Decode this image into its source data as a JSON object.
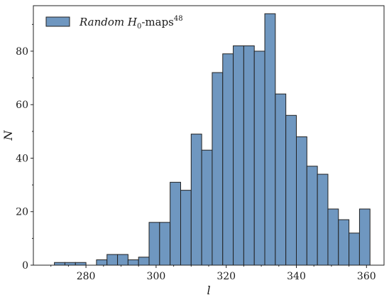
{
  "chart_data": {
    "type": "bar",
    "subtype": "histogram",
    "xlabel": "l",
    "ylabel": "N",
    "xlim": [
      265,
      365
    ],
    "ylim": [
      0,
      97
    ],
    "xticks": [
      280,
      300,
      320,
      340,
      360
    ],
    "yticks": [
      0,
      20,
      40,
      60,
      80
    ],
    "grid": false,
    "legend_position": "top-left",
    "series": [
      {
        "name_parts": {
          "italic": "Random H",
          "subscript": "0",
          "text": "-maps",
          "superscript": "48"
        },
        "color": "#6f97c0",
        "edge_color": "#222222",
        "bin_edges": [
          271,
          274,
          277,
          280,
          283,
          286,
          289,
          292,
          295,
          298,
          301,
          304,
          307,
          310,
          313,
          316,
          319,
          322,
          325,
          328,
          331,
          334,
          337,
          340,
          343,
          346,
          349,
          352,
          355,
          358,
          361
        ],
        "counts": [
          1,
          1,
          1,
          0,
          2,
          4,
          4,
          2,
          3,
          16,
          16,
          31,
          28,
          49,
          43,
          72,
          79,
          82,
          82,
          80,
          94,
          64,
          56,
          48,
          37,
          34,
          21,
          17,
          12,
          21
        ]
      }
    ]
  }
}
